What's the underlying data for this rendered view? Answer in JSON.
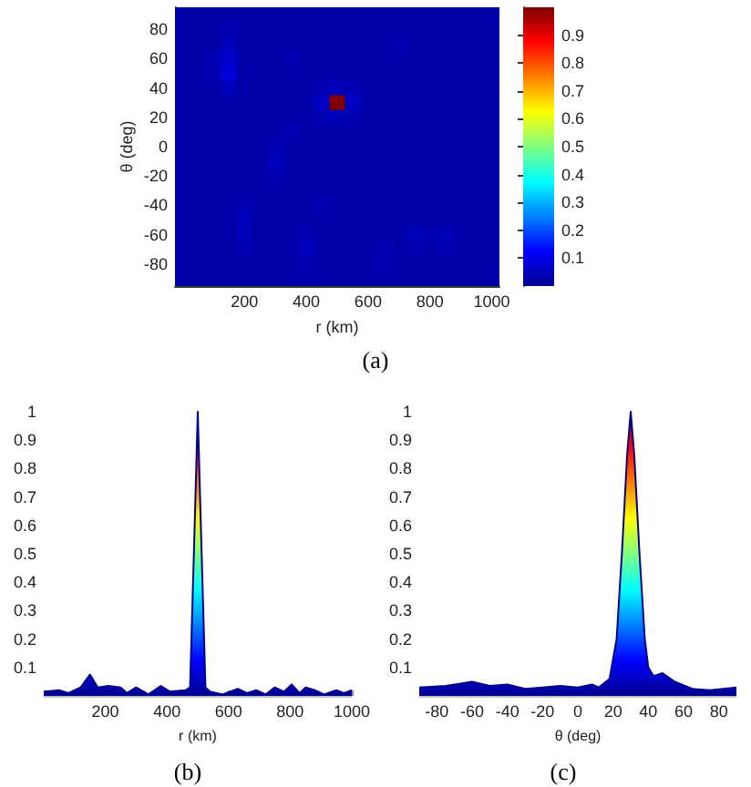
{
  "chart_data": [
    {
      "type": "heatmap",
      "xlabel": "r (km)",
      "ylabel": "θ (deg)",
      "categories": [
        null,
        null,
        null,
        null,
        "200",
        null,
        null,
        null,
        "400",
        null,
        null,
        null,
        "600",
        null,
        null,
        null,
        "800",
        null,
        null,
        null,
        "1000"
      ],
      "y_categories": [
        null,
        "80",
        null,
        "60",
        null,
        "40",
        null,
        "20",
        null,
        "0",
        null,
        "-20",
        null,
        "-40",
        null,
        "-60",
        null,
        "-80",
        null
      ],
      "cells": [
        [
          0.03,
          0.03,
          0.03,
          0.03,
          0.03,
          0.03,
          0.03,
          0.03,
          0.03,
          0.03,
          0.03,
          0.03,
          0.03,
          0.03,
          0.03,
          0.03,
          0.03,
          0.03,
          0.03,
          0.03,
          0.03
        ],
        [
          0.03,
          0.03,
          0.03,
          0.04,
          0.03,
          0.03,
          0.03,
          0.03,
          0.03,
          0.03,
          0.03,
          0.03,
          0.03,
          0.03,
          0.03,
          0.03,
          0.03,
          0.03,
          0.03,
          0.03,
          0.03
        ],
        [
          0.03,
          0.03,
          0.03,
          0.05,
          0.03,
          0.03,
          0.03,
          0.03,
          0.03,
          0.03,
          0.03,
          0.03,
          0.03,
          0.03,
          0.04,
          0.03,
          0.03,
          0.03,
          0.03,
          0.03,
          0.03
        ],
        [
          0.03,
          0.03,
          0.04,
          0.07,
          0.03,
          0.03,
          0.03,
          0.04,
          0.03,
          0.03,
          0.03,
          0.03,
          0.03,
          0.03,
          0.03,
          0.03,
          0.03,
          0.03,
          0.03,
          0.03,
          0.03
        ],
        [
          0.03,
          0.03,
          0.04,
          0.08,
          0.03,
          0.03,
          0.03,
          0.03,
          0.03,
          0.03,
          0.03,
          0.03,
          0.03,
          0.03,
          0.03,
          0.03,
          0.03,
          0.03,
          0.03,
          0.03,
          0.03
        ],
        [
          0.03,
          0.03,
          0.03,
          0.05,
          0.03,
          0.03,
          0.03,
          0.03,
          0.03,
          0.04,
          0.05,
          0.04,
          0.03,
          0.03,
          0.03,
          0.03,
          0.03,
          0.03,
          0.03,
          0.03,
          0.03
        ],
        [
          0.03,
          0.03,
          0.03,
          0.03,
          0.03,
          0.03,
          0.03,
          0.03,
          0.03,
          0.06,
          1,
          0.06,
          0.03,
          0.03,
          0.03,
          0.03,
          0.03,
          0.03,
          0.03,
          0.03,
          0.03
        ],
        [
          0.03,
          0.03,
          0.03,
          0.03,
          0.03,
          0.03,
          0.03,
          0.03,
          0.03,
          0.04,
          0.05,
          0.04,
          0.03,
          0.03,
          0.03,
          0.03,
          0.03,
          0.03,
          0.03,
          0.03,
          0.03
        ],
        [
          0.03,
          0.03,
          0.03,
          0.03,
          0.03,
          0.03,
          0.03,
          0.04,
          0.03,
          0.03,
          0.03,
          0.03,
          0.03,
          0.03,
          0.03,
          0.03,
          0.03,
          0.03,
          0.03,
          0.03,
          0.03
        ],
        [
          0.03,
          0.03,
          0.03,
          0.03,
          0.03,
          0.03,
          0.04,
          0.03,
          0.03,
          0.03,
          0.03,
          0.03,
          0.03,
          0.03,
          0.03,
          0.03,
          0.03,
          0.03,
          0.03,
          0.03,
          0.03
        ],
        [
          0.03,
          0.03,
          0.03,
          0.03,
          0.03,
          0.03,
          0.05,
          0.03,
          0.03,
          0.03,
          0.03,
          0.03,
          0.03,
          0.03,
          0.03,
          0.03,
          0.03,
          0.03,
          0.03,
          0.03,
          0.03
        ],
        [
          0.03,
          0.03,
          0.03,
          0.03,
          0.03,
          0.03,
          0.04,
          0.03,
          0.03,
          0.03,
          0.03,
          0.03,
          0.03,
          0.03,
          0.03,
          0.03,
          0.03,
          0.03,
          0.03,
          0.03,
          0.03
        ],
        [
          0.03,
          0.03,
          0.03,
          0.03,
          0.03,
          0.03,
          0.03,
          0.03,
          0.03,
          0.03,
          0.03,
          0.03,
          0.03,
          0.03,
          0.03,
          0.03,
          0.03,
          0.03,
          0.03,
          0.03,
          0.03
        ],
        [
          0.03,
          0.03,
          0.03,
          0.03,
          0.04,
          0.03,
          0.03,
          0.03,
          0.03,
          0.04,
          0.03,
          0.03,
          0.03,
          0.03,
          0.03,
          0.03,
          0.03,
          0.03,
          0.03,
          0.03,
          0.03
        ],
        [
          0.03,
          0.03,
          0.03,
          0.03,
          0.05,
          0.03,
          0.03,
          0.03,
          0.03,
          0.03,
          0.03,
          0.03,
          0.03,
          0.03,
          0.03,
          0.03,
          0.03,
          0.03,
          0.03,
          0.03,
          0.03
        ],
        [
          0.03,
          0.03,
          0.03,
          0.03,
          0.05,
          0.03,
          0.03,
          0.03,
          0.04,
          0.03,
          0.03,
          0.03,
          0.03,
          0.03,
          0.03,
          0.05,
          0.04,
          0.05,
          0.03,
          0.03,
          0.03
        ],
        [
          0.03,
          0.03,
          0.03,
          0.03,
          0.04,
          0.03,
          0.03,
          0.03,
          0.05,
          0.03,
          0.03,
          0.03,
          0.03,
          0.04,
          0.03,
          0.04,
          0.03,
          0.04,
          0.03,
          0.03,
          0.03
        ],
        [
          0.03,
          0.03,
          0.03,
          0.03,
          0.03,
          0.03,
          0.03,
          0.03,
          0.04,
          0.03,
          0.03,
          0.03,
          0.03,
          0.04,
          0.03,
          0.03,
          0.03,
          0.03,
          0.03,
          0.03,
          0.03
        ],
        [
          0.03,
          0.03,
          0.03,
          0.03,
          0.03,
          0.03,
          0.03,
          0.03,
          0.03,
          0.03,
          0.03,
          0.03,
          0.03,
          0.03,
          0.03,
          0.03,
          0.03,
          0.03,
          0.03,
          0.03,
          0.03
        ]
      ],
      "clim": [
        0,
        1
      ],
      "cticks": [
        0.1,
        0.2,
        0.3,
        0.4,
        0.5,
        0.6,
        0.7,
        0.8,
        0.9
      ],
      "annotations": [
        "(a)"
      ]
    },
    {
      "type": "area",
      "xlabel": "r (km)",
      "x": [
        0,
        50,
        80,
        120,
        150,
        175,
        210,
        250,
        270,
        300,
        340,
        380,
        410,
        460,
        475,
        490,
        500,
        510,
        525,
        540,
        580,
        630,
        660,
        690,
        720,
        750,
        780,
        805,
        830,
        850,
        880,
        910,
        950,
        975,
        1000
      ],
      "series": [
        {
          "color": "#00008f",
          "values": [
            0.015,
            0.02,
            0.01,
            0.03,
            0.075,
            0.03,
            0.035,
            0.03,
            0.01,
            0.03,
            0.005,
            0.035,
            0.015,
            0.02,
            0.03,
            0.6,
            1,
            0.6,
            0.03,
            0.015,
            0.005,
            0.025,
            0.01,
            0.02,
            0.005,
            0.03,
            0.015,
            0.04,
            0.01,
            0.03,
            0.02,
            0.005,
            0.02,
            0.01,
            0.02
          ]
        }
      ],
      "xlim": [
        0,
        1000
      ],
      "xticks": [
        200,
        400,
        600,
        800,
        1000
      ],
      "ylim": [
        0,
        1
      ],
      "yticks": [
        0.1,
        0.2,
        0.3,
        0.4,
        0.5,
        0.6,
        0.7,
        0.8,
        0.9,
        1
      ],
      "annotations": [
        "(b)"
      ]
    },
    {
      "type": "area",
      "xlabel": "θ (deg)",
      "x": [
        -90,
        -75,
        -60,
        -50,
        -40,
        -30,
        -20,
        -10,
        0,
        8,
        12,
        18,
        22,
        25,
        28,
        30,
        32,
        35,
        38,
        40,
        43,
        48,
        55,
        65,
        75,
        90
      ],
      "series": [
        {
          "color": "#00008f",
          "values": [
            0.03,
            0.035,
            0.05,
            0.035,
            0.04,
            0.025,
            0.03,
            0.035,
            0.03,
            0.04,
            0.03,
            0.06,
            0.2,
            0.5,
            0.85,
            1,
            0.85,
            0.5,
            0.2,
            0.1,
            0.07,
            0.08,
            0.05,
            0.025,
            0.02,
            0.03
          ]
        }
      ],
      "xlim": [
        -90,
        90
      ],
      "xticks": [
        -80,
        -60,
        -40,
        -20,
        0,
        20,
        40,
        60,
        80
      ],
      "ylim": [
        0,
        1
      ],
      "yticks": [
        0.1,
        0.2,
        0.3,
        0.4,
        0.5,
        0.6,
        0.7,
        0.8,
        0.9,
        1
      ],
      "annotations": [
        "(c)"
      ]
    }
  ]
}
